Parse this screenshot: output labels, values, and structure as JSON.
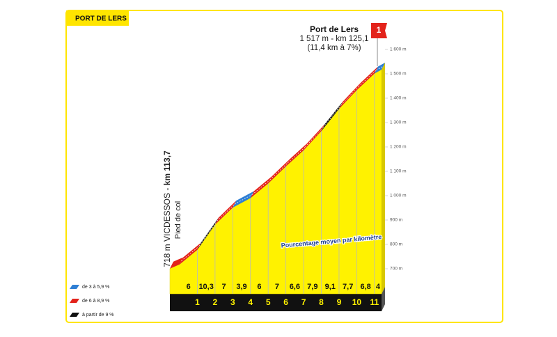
{
  "chart_data": {
    "type": "climb-profile",
    "title": "PORT DE LERS",
    "summit_name": "Port de Lers",
    "summit_info": "1 517 m - km 125,1",
    "summit_climb": "(11,4 km à 7%)",
    "summit_flag": "1",
    "start_info_a": "718 m VICDESSOS - ",
    "start_info_b": "km 113,7",
    "start_note": "Pied de col",
    "segments_caption": "Pourcentage moyen par kilomètre",
    "profile": {
      "x": [
        0,
        1,
        2,
        3,
        4,
        5,
        6,
        7,
        8,
        9,
        10,
        11,
        11.4
      ],
      "values": [
        718,
        778,
        881,
        951,
        990,
        1050,
        1120,
        1186,
        1265,
        1356,
        1433,
        1501,
        1517
      ]
    },
    "segments": {
      "values": [
        6,
        10.3,
        7,
        3.9,
        6,
        7,
        6.6,
        7.9,
        9.1,
        7.7,
        6.8,
        4
      ],
      "value_labels": [
        "6",
        "10,3",
        "7",
        "3,9",
        "6",
        "7",
        "6,6",
        "7,9",
        "9,1",
        "7,7",
        "6,8",
        "4"
      ]
    },
    "legend": [
      {
        "name": "de 3 à 5,9 %",
        "color": "#2f7fd4",
        "min": 3
      },
      {
        "name": "de 6 à 8,9 %",
        "color": "#e3231b",
        "min": 6
      },
      {
        "name": "à partir de 9 %",
        "color": "#111111",
        "min": 9
      }
    ],
    "xlim": [
      0,
      11.4
    ],
    "xticks": [
      1,
      2,
      3,
      4,
      5,
      6,
      7,
      8,
      9,
      10,
      11
    ],
    "ylim": [
      700,
      1600
    ],
    "yticks": [
      {
        "value": 700,
        "label": "700 m"
      },
      {
        "value": 800,
        "label": "800 m"
      },
      {
        "value": 900,
        "label": "900 m"
      },
      {
        "value": 1000,
        "label": "1 000 m"
      },
      {
        "value": 1100,
        "label": "1 100 m"
      },
      {
        "value": 1200,
        "label": "1 200 m"
      },
      {
        "value": 1300,
        "label": "1 300 m"
      },
      {
        "value": 1400,
        "label": "1 400 m"
      },
      {
        "value": 1500,
        "label": "1 500 m"
      },
      {
        "value": 1600,
        "label": "1 600 m"
      }
    ],
    "fill_color": "#fff200"
  }
}
